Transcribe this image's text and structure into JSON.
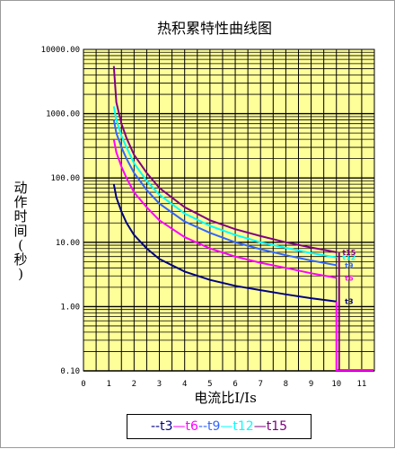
{
  "chart_data": {
    "type": "line",
    "title": "热积累特性曲线图",
    "ylabel_chars": [
      "动",
      "作",
      "时",
      "间",
      "(",
      "秒",
      ")"
    ],
    "ylabel": "动作时间(秒)",
    "xlabel": "电流比I/Is",
    "x_ticks": [
      "0",
      "1",
      "2",
      "3",
      "4",
      "5",
      "6",
      "7",
      "8",
      "9",
      "10",
      "11"
    ],
    "y_ticks": [
      "10000.00",
      "1000.00",
      "100.00",
      "10.00",
      "1.00",
      "0.10"
    ],
    "y_scale": "log",
    "xlim": [
      0,
      11.5
    ],
    "ylim": [
      0.1,
      10000
    ],
    "grid": true,
    "legend_position": "bottom",
    "colors": {
      "plot_bg": "#ffff99",
      "grid": "#000000",
      "t3": "#000080",
      "t6": "#ff00ff",
      "t9": "#3366ff",
      "t12": "#00ffff",
      "t15": "#800080"
    },
    "series": [
      {
        "name": "t3",
        "label": "t3",
        "color": "#000080",
        "x": [
          1.2,
          1.3,
          1.5,
          1.7,
          2.0,
          2.5,
          3.0,
          4.0,
          5.0,
          6.0,
          7.0,
          8.0,
          9.0,
          10.0
        ],
        "y": [
          80,
          50,
          30,
          20,
          13,
          8,
          5.5,
          3.5,
          2.6,
          2.1,
          1.8,
          1.55,
          1.35,
          1.2
        ]
      },
      {
        "name": "t6",
        "label": "t6",
        "color": "#ff00ff",
        "x": [
          1.2,
          1.3,
          1.5,
          1.7,
          2.0,
          2.5,
          3.0,
          4.0,
          5.0,
          6.0,
          7.0,
          8.0,
          9.0,
          10.0
        ],
        "y": [
          400,
          250,
          150,
          100,
          60,
          35,
          22,
          12,
          8,
          6,
          4.8,
          4,
          3.3,
          2.8
        ]
      },
      {
        "name": "t9",
        "label": "t9",
        "color": "#3366ff",
        "x": [
          1.2,
          1.3,
          1.5,
          1.7,
          2.0,
          2.5,
          3.0,
          4.0,
          5.0,
          6.0,
          7.0,
          8.0,
          9.0,
          10.0
        ],
        "y": [
          800,
          500,
          300,
          200,
          120,
          65,
          40,
          21,
          14,
          10,
          7.8,
          6.3,
          5.2,
          4.4
        ]
      },
      {
        "name": "t12",
        "label": "t12",
        "color": "#00ffff",
        "x": [
          1.2,
          1.3,
          1.5,
          1.7,
          2.0,
          2.5,
          3.0,
          4.0,
          5.0,
          6.0,
          7.0,
          8.0,
          9.0,
          10.0
        ],
        "y": [
          1300,
          800,
          450,
          300,
          170,
          90,
          55,
          28,
          18,
          13,
          10,
          8.2,
          6.8,
          5.8
        ]
      },
      {
        "name": "t15",
        "label": "t15",
        "color": "#800080",
        "x": [
          1.2,
          1.3,
          1.5,
          1.7,
          2.0,
          2.5,
          3.0,
          4.0,
          5.0,
          6.0,
          7.0,
          8.0,
          9.0,
          10.0
        ],
        "y": [
          5500,
          1500,
          700,
          420,
          230,
          120,
          70,
          35,
          22,
          16,
          12.5,
          10,
          8.3,
          7
        ]
      }
    ],
    "cutoff": {
      "x": 10.0,
      "y_bottom": 0.1,
      "x_end": 11.5,
      "color": "#ff00ff"
    },
    "legend_entries": [
      {
        "name": "t3",
        "text": "--t3",
        "color": "#000080"
      },
      {
        "name": "t6",
        "text": "—t6",
        "color": "#ff00ff"
      },
      {
        "name": "t9",
        "text": "--t9",
        "color": "#3366ff"
      },
      {
        "name": "t12",
        "text": "—t12",
        "color": "#00ffff"
      },
      {
        "name": "t15",
        "text": "—t15",
        "color": "#800080"
      }
    ]
  }
}
